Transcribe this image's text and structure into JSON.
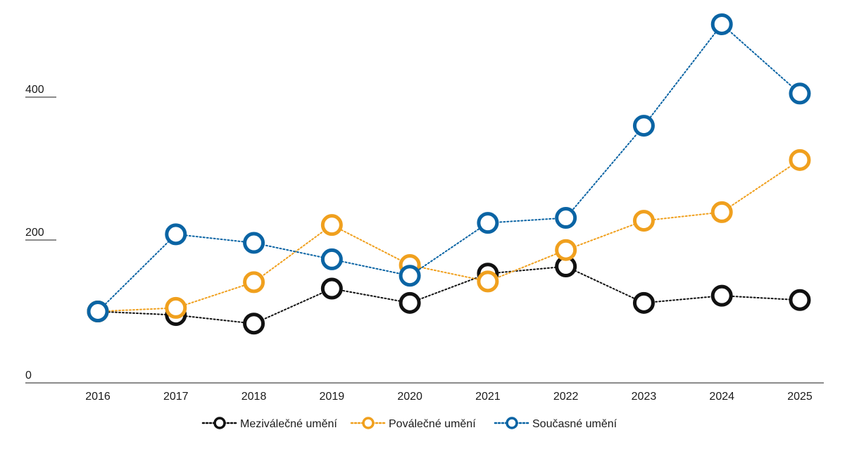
{
  "chart_data": {
    "type": "line",
    "title": "",
    "xlabel": "",
    "ylabel": "",
    "x": [
      "2016",
      "2017",
      "2018",
      "2019",
      "2020",
      "2021",
      "2022",
      "2023",
      "2024",
      "2025"
    ],
    "y_ticks": [
      "0",
      "200",
      "400"
    ],
    "y_tick_values": [
      0,
      200,
      400
    ],
    "ylim": [
      0,
      500
    ],
    "grid": false,
    "legend_position": "bottom-center",
    "line_style": "dotted",
    "marker": "hollow-circle",
    "series": [
      {
        "name": "Meziválečné umění",
        "color": "#111111",
        "values": [
          100,
          95,
          83,
          132,
          112,
          153,
          163,
          112,
          122,
          116
        ]
      },
      {
        "name": "Poválečné umění",
        "color": "#f0a01e",
        "values": [
          100,
          105,
          141,
          221,
          165,
          142,
          186,
          227,
          239,
          312
        ]
      },
      {
        "name": "Současné umění",
        "color": "#0a64a4",
        "values": [
          100,
          208,
          196,
          173,
          150,
          224,
          231,
          360,
          502,
          405
        ]
      }
    ]
  }
}
